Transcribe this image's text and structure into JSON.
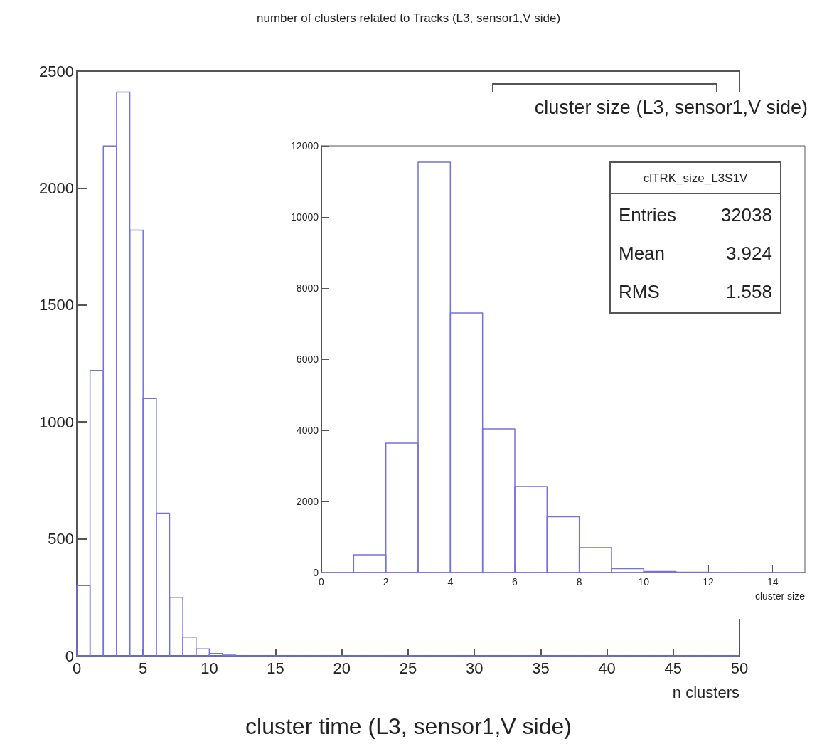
{
  "chart_data": [
    {
      "type": "histogram",
      "title": "number of clusters related to Tracks (L3, sensor1,V side)",
      "xlabel": "n clusters",
      "color": "#7272dc",
      "bins": [
        0,
        1,
        2,
        3,
        4,
        5,
        6,
        7,
        8,
        9,
        10,
        11,
        12,
        13,
        14,
        15,
        16,
        17,
        18,
        19,
        20,
        21,
        22,
        23,
        24,
        25,
        26,
        27,
        28,
        29,
        30,
        31,
        32,
        33,
        34,
        35,
        36,
        37,
        38,
        39,
        40,
        41,
        42,
        43,
        44,
        45,
        46,
        47,
        48,
        49,
        50
      ],
      "values": [
        300,
        1220,
        2180,
        2410,
        1820,
        1100,
        610,
        250,
        80,
        30,
        10,
        3,
        0,
        0,
        0,
        0,
        0,
        0,
        0,
        0,
        0,
        0,
        0,
        0,
        0,
        0,
        0,
        0,
        0,
        0,
        0,
        0,
        0,
        0,
        0,
        0,
        0,
        0,
        0,
        0,
        0,
        0,
        0,
        0,
        0,
        0,
        0,
        0,
        0,
        0
      ],
      "xlim": [
        0,
        50
      ],
      "xticks": [
        0,
        5,
        10,
        15,
        20,
        25,
        30,
        35,
        40,
        45,
        50
      ],
      "ylim": [
        0,
        2500
      ],
      "yticks": [
        0,
        500,
        1000,
        1500,
        2000,
        2500
      ],
      "grid": false,
      "annotations": [
        "cluster time (L3, sensor1,V side)"
      ]
    },
    {
      "type": "histogram",
      "title": "cluster size (L3, sensor1,V side)",
      "xlabel": "cluster size",
      "color": "#7272dc",
      "bins": [
        0,
        1,
        2,
        3,
        4,
        5,
        6,
        7,
        8,
        9,
        10,
        11,
        12,
        13,
        14,
        15
      ],
      "values": [
        0,
        500,
        3640,
        11540,
        7300,
        4040,
        2420,
        1570,
        700,
        110,
        30,
        10,
        0,
        0,
        0
      ],
      "xlim": [
        0,
        15
      ],
      "xticks": [
        0,
        2,
        4,
        6,
        8,
        10,
        12,
        14
      ],
      "ylim": [
        0,
        12000
      ],
      "yticks": [
        0,
        2000,
        4000,
        6000,
        8000,
        10000,
        12000
      ],
      "grid": false,
      "annotations": [
        "clTRK_size_L3S1V",
        "Entries",
        "32038",
        "Mean",
        "3.924",
        "RMS",
        "1.558"
      ]
    }
  ]
}
